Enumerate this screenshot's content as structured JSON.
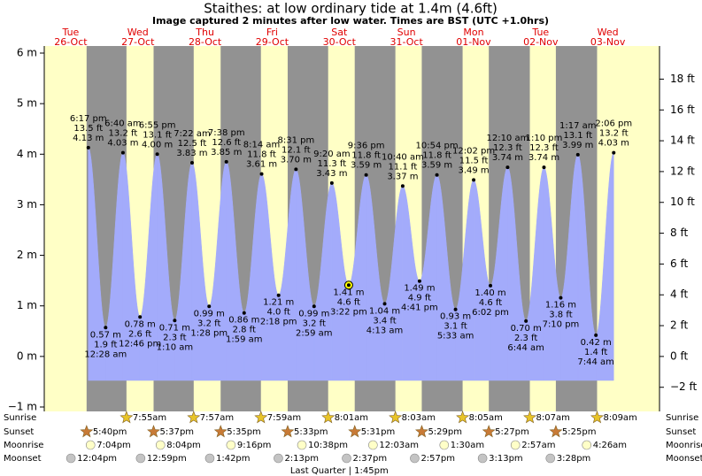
{
  "chart_data": {
    "type": "tide",
    "title": "Staithes: at low  ordinary tide at 1.4m (4.6ft)",
    "subtitle": "Image captured 2 minutes after low water. Times are BST (UTC +1.0hrs)",
    "ylim": [
      -1,
      6
    ],
    "yticks": [
      {
        "value": -1,
        "label": "−1 m"
      },
      {
        "value": 0,
        "label": "0 m"
      },
      {
        "value": 1,
        "label": "1 m"
      },
      {
        "value": 2,
        "label": "2 m"
      },
      {
        "value": 3,
        "label": "3 m"
      },
      {
        "value": 4,
        "label": "4 m"
      },
      {
        "value": 5,
        "label": "5 m"
      },
      {
        "value": 6,
        "label": "6 m"
      }
    ],
    "y2lim": [
      -3.28,
      19.69
    ],
    "y2ticks": [
      {
        "value": -2,
        "label": "−2 ft"
      },
      {
        "value": 0,
        "label": "0 ft"
      },
      {
        "value": 2,
        "label": "2 ft"
      },
      {
        "value": 4,
        "label": "4 ft"
      },
      {
        "value": 6,
        "label": "6 ft"
      },
      {
        "value": 8,
        "label": "8 ft"
      },
      {
        "value": 10,
        "label": "10 ft"
      },
      {
        "value": 12,
        "label": "12 ft"
      },
      {
        "value": 14,
        "label": "14 ft"
      },
      {
        "value": 16,
        "label": "16 ft"
      },
      {
        "value": 18,
        "label": "18 ft"
      }
    ],
    "row_labels": {
      "sunrise": "Sunrise",
      "sunset": "Sunset",
      "moonrise": "Moonrise",
      "moonset": "Moonset"
    },
    "colors": {
      "water": "#a3abfb",
      "day": "#ffffc6",
      "night": "#929292",
      "date": "#e00000"
    },
    "days": [
      {
        "weekday": "Tue",
        "date": "26-Oct",
        "sunrise": null,
        "sunset": "5:40pm",
        "moonrise": "7:04pm",
        "moonset": "12:04pm",
        "tides": [
          {
            "time": "6:17 pm",
            "height": 4.13,
            "height_label": "4.13 m",
            "ft_label": "13.5 ft"
          }
        ]
      },
      {
        "weekday": "Wed",
        "date": "27-Oct",
        "sunrise": "7:55am",
        "sunset": "5:37pm",
        "moonrise": "8:04pm",
        "moonset": "12:59pm",
        "tides": [
          {
            "time": "12:28 am",
            "height": 0.57,
            "height_label": "0.57 m",
            "ft_label": "1.9 ft"
          },
          {
            "time": "6:40 am",
            "height": 4.03,
            "height_label": "4.03 m",
            "ft_label": "13.2 ft"
          },
          {
            "time": "12:46 pm",
            "height": 0.78,
            "height_label": "0.78 m",
            "ft_label": "2.6 ft"
          },
          {
            "time": "6:55 pm",
            "height": 4.0,
            "height_label": "4.00 m",
            "ft_label": "13.1 ft"
          }
        ]
      },
      {
        "weekday": "Thu",
        "date": "28-Oct",
        "sunrise": "7:57am",
        "sunset": "5:35pm",
        "moonrise": "9:16pm",
        "moonset": "1:42pm",
        "tides": [
          {
            "time": "1:10 am",
            "height": 0.71,
            "height_label": "0.71 m",
            "ft_label": "2.3 ft"
          },
          {
            "time": "7:22 am",
            "height": 3.83,
            "height_label": "3.83 m",
            "ft_label": "12.5 ft"
          },
          {
            "time": "1:28 pm",
            "height": 0.99,
            "height_label": "0.99 m",
            "ft_label": "3.2 ft"
          },
          {
            "time": "7:38 pm",
            "height": 3.85,
            "height_label": "3.85 m",
            "ft_label": "12.6 ft"
          }
        ]
      },
      {
        "weekday": "Fri",
        "date": "29-Oct",
        "sunrise": "7:59am",
        "sunset": "5:33pm",
        "moonrise": "10:38pm",
        "moonset": "2:13pm",
        "tides": [
          {
            "time": "1:59 am",
            "height": 0.86,
            "height_label": "0.86 m",
            "ft_label": "2.8 ft"
          },
          {
            "time": "8:14 am",
            "height": 3.61,
            "height_label": "3.61 m",
            "ft_label": "11.8 ft"
          },
          {
            "time": "2:18 pm",
            "height": 1.21,
            "height_label": "1.21 m",
            "ft_label": "4.0 ft"
          },
          {
            "time": "8:31 pm",
            "height": 3.7,
            "height_label": "3.70 m",
            "ft_label": "12.1 ft"
          }
        ]
      },
      {
        "weekday": "Sat",
        "date": "30-Oct",
        "sunrise": "8:01am",
        "sunset": "5:31pm",
        "moonrise": null,
        "moonset": "2:37pm",
        "moon_phase": "Last Quarter | 1:45pm",
        "tides": [
          {
            "time": "2:59 am",
            "height": 0.99,
            "height_label": "0.99 m",
            "ft_label": "3.2 ft"
          },
          {
            "time": "9:20 am",
            "height": 3.43,
            "height_label": "3.43 m",
            "ft_label": "11.3 ft"
          },
          {
            "time": "3:22 pm",
            "height": 1.41,
            "height_label": "1.41 m",
            "ft_label": "4.6 ft",
            "current": true
          },
          {
            "time": "9:36 pm",
            "height": 3.59,
            "height_label": "3.59 m",
            "ft_label": "11.8 ft"
          }
        ]
      },
      {
        "weekday": "Sun",
        "date": "31-Oct",
        "sunrise": "8:03am",
        "sunset": "5:29pm",
        "moonrise": "12:03am",
        "moonset": "2:57pm",
        "tides": [
          {
            "time": "4:13 am",
            "height": 1.04,
            "height_label": "1.04 m",
            "ft_label": "3.4 ft"
          },
          {
            "time": "10:40 am",
            "height": 3.37,
            "height_label": "3.37 m",
            "ft_label": "11.1 ft"
          },
          {
            "time": "4:41 pm",
            "height": 1.49,
            "height_label": "1.49 m",
            "ft_label": "4.9 ft"
          },
          {
            "time": "10:54 pm",
            "height": 3.59,
            "height_label": "3.59 m",
            "ft_label": "11.8 ft"
          }
        ]
      },
      {
        "weekday": "Mon",
        "date": "01-Nov",
        "sunrise": "8:05am",
        "sunset": "5:27pm",
        "moonrise": "1:30am",
        "moonset": "3:13pm",
        "tides": [
          {
            "time": "5:33 am",
            "height": 0.93,
            "height_label": "0.93 m",
            "ft_label": "3.1 ft"
          },
          {
            "time": "12:02 pm",
            "height": 3.49,
            "height_label": "3.49 m",
            "ft_label": "11.5 ft"
          },
          {
            "time": "6:02 pm",
            "height": 1.4,
            "height_label": "1.40 m",
            "ft_label": "4.6 ft"
          }
        ]
      },
      {
        "weekday": "Tue",
        "date": "02-Nov",
        "sunrise": "8:07am",
        "sunset": "5:25pm",
        "moonrise": "2:57am",
        "moonset": "3:28pm",
        "tides": [
          {
            "time": "12:10 am",
            "height": 3.74,
            "height_label": "3.74 m",
            "ft_label": "12.3 ft"
          },
          {
            "time": "6:44 am",
            "height": 0.7,
            "height_label": "0.70 m",
            "ft_label": "2.3 ft"
          },
          {
            "time": "1:10 pm",
            "height": 3.74,
            "height_label": "3.74 m",
            "ft_label": "12.3 ft"
          },
          {
            "time": "7:10 pm",
            "height": 1.16,
            "height_label": "1.16 m",
            "ft_label": "3.8 ft"
          }
        ]
      },
      {
        "weekday": "Wed",
        "date": "03-Nov",
        "sunrise": "8:09am",
        "sunset": null,
        "moonrise": "4:26am",
        "moonset": null,
        "tides": [
          {
            "time": "1:17 am",
            "height": 3.99,
            "height_label": "3.99 m",
            "ft_label": "13.1 ft"
          },
          {
            "time": "7:44 am",
            "height": 0.42,
            "height_label": "0.42 m",
            "ft_label": "1.4 ft"
          },
          {
            "time": "2:06 pm",
            "height": 4.03,
            "height_label": "4.03 m",
            "ft_label": "13.2 ft"
          }
        ]
      }
    ]
  }
}
